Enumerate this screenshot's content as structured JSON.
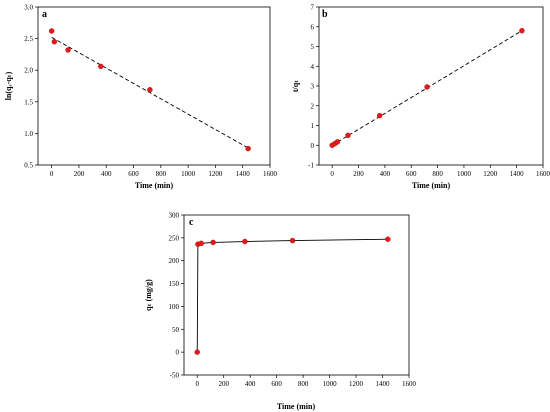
{
  "colors": {
    "marker": "#e31a1c",
    "line": "#000000",
    "axis": "#000000"
  },
  "chart_data": [
    {
      "panel": "a",
      "type": "scatter",
      "xlabel": "Time (min)",
      "ylabel": "ln(qₑ-qₜ)",
      "xlim": [
        -100,
        1600
      ],
      "ylim": [
        0.5,
        3.0
      ],
      "xticks": [
        "0",
        "200",
        "400",
        "600",
        "800",
        "1000",
        "1200",
        "1400",
        "1600"
      ],
      "yticks": [
        "0.5",
        "1.0",
        "1.5",
        "2.0",
        "2.5",
        "3.0"
      ],
      "xtick_values": [
        0,
        200,
        400,
        600,
        800,
        1000,
        1200,
        1400,
        1600
      ],
      "ytick_values": [
        0.5,
        1.0,
        1.5,
        2.0,
        2.5,
        3.0
      ],
      "points": {
        "x": [
          0,
          20,
          120,
          360,
          720,
          1440
        ],
        "y": [
          2.62,
          2.45,
          2.32,
          2.06,
          1.69,
          0.76
        ]
      },
      "fit_line": {
        "style": "dashed",
        "x": [
          0,
          1440
        ],
        "y": [
          2.52,
          0.77
        ]
      }
    },
    {
      "panel": "b",
      "type": "scatter",
      "xlabel": "Time (min)",
      "ylabel": "t/qₜ",
      "xlim": [
        -100,
        1600
      ],
      "ylim": [
        -1,
        7
      ],
      "xticks": [
        "0",
        "200",
        "400",
        "600",
        "800",
        "1000",
        "1200",
        "1400",
        "1600"
      ],
      "yticks": [
        "-1",
        "0",
        "1",
        "2",
        "3",
        "4",
        "5",
        "6",
        "7"
      ],
      "xtick_values": [
        0,
        200,
        400,
        600,
        800,
        1000,
        1200,
        1400,
        1600
      ],
      "ytick_values": [
        -1,
        0,
        1,
        2,
        3,
        4,
        5,
        6,
        7
      ],
      "points": {
        "x": [
          0,
          20,
          40,
          120,
          360,
          720,
          1440
        ],
        "y": [
          0.0,
          0.08,
          0.17,
          0.5,
          1.5,
          2.95,
          5.8
        ]
      },
      "fit_line": {
        "style": "dashed",
        "x": [
          0,
          1440
        ],
        "y": [
          0.0,
          5.8
        ]
      }
    },
    {
      "panel": "c",
      "type": "line",
      "xlabel": "Time (min)",
      "ylabel": "qₜ (mg/g)",
      "xlim": [
        -100,
        1600
      ],
      "ylim": [
        -50,
        300
      ],
      "xticks": [
        "0",
        "200",
        "400",
        "600",
        "800",
        "1000",
        "1200",
        "1400",
        "1600"
      ],
      "yticks": [
        "-50",
        "0",
        "50",
        "100",
        "150",
        "200",
        "250",
        "300"
      ],
      "xtick_values": [
        0,
        200,
        400,
        600,
        800,
        1000,
        1200,
        1400,
        1600
      ],
      "ytick_values": [
        -50,
        0,
        50,
        100,
        150,
        200,
        250,
        300
      ],
      "points": {
        "x": [
          0,
          5,
          30,
          120,
          360,
          720,
          1440
        ],
        "y": [
          0,
          236,
          238,
          240,
          242,
          244,
          247
        ]
      },
      "fit_line": {
        "style": "solid",
        "x": [
          0,
          5,
          30,
          120,
          360,
          720,
          1440
        ],
        "y": [
          0,
          236,
          238,
          240,
          242,
          244,
          247
        ]
      }
    }
  ]
}
